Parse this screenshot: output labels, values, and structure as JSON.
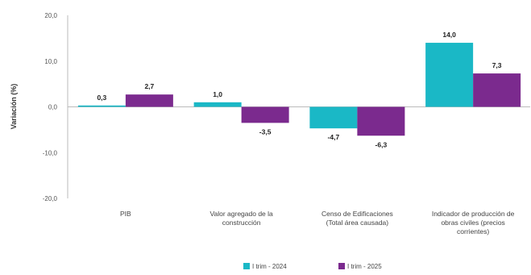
{
  "chart_data": {
    "type": "bar",
    "ylabel": "Variación  (%)",
    "ylim": [
      -20,
      20
    ],
    "yticks": [
      "20,0",
      "10,0",
      "0,0",
      "-10,0",
      "-20,0"
    ],
    "categories": [
      [
        "PIB"
      ],
      [
        "Valor agregado de la",
        "construcción"
      ],
      [
        "Censo de Edificaciones",
        "(Total área causada)"
      ],
      [
        "Indicador de producción de",
        "obras civiles (precios",
        "corrientes)"
      ]
    ],
    "series": [
      {
        "name": "I trim - 2024",
        "color": "#1ab8c6",
        "values": [
          0.3,
          1.0,
          -4.7,
          14.0
        ],
        "labels": [
          "0,3",
          "1,0",
          "-4,7",
          "14,0"
        ]
      },
      {
        "name": "I trim - 2025",
        "color": "#7b2a8e",
        "values": [
          2.7,
          -3.5,
          -6.3,
          7.3
        ],
        "labels": [
          "2,7",
          "-3,5",
          "-6,3",
          "7,3"
        ]
      }
    ],
    "legend_position": "bottom-center",
    "grid": false
  }
}
